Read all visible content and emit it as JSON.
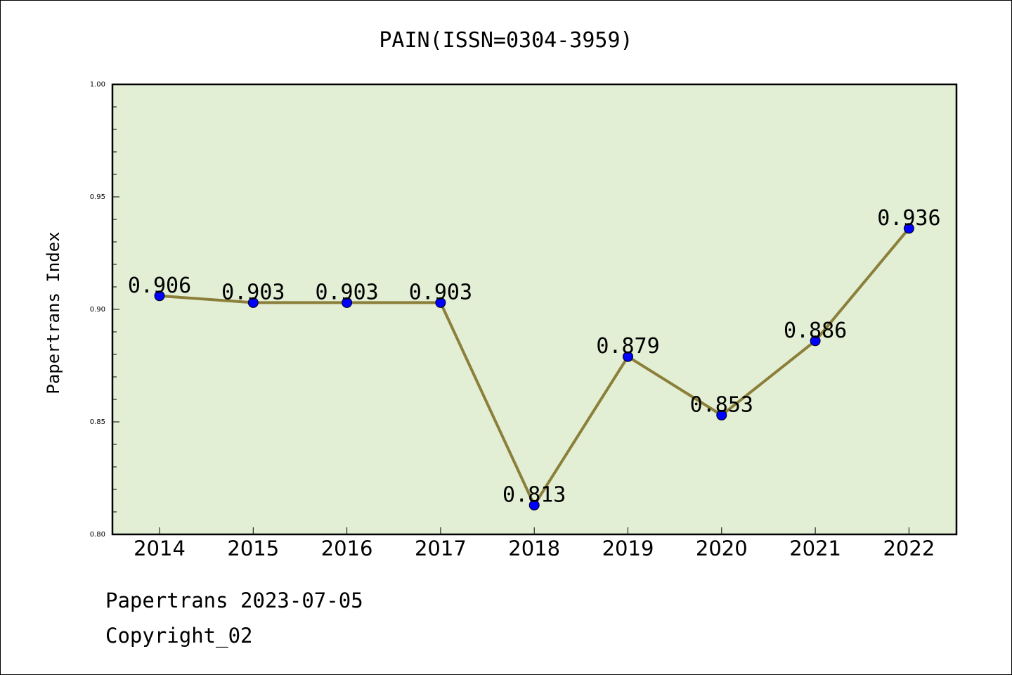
{
  "chart_data": {
    "type": "line",
    "title": "PAIN(ISSN=0304-3959)",
    "xlabel": "",
    "ylabel": "Papertrans Index",
    "categories": [
      "2014",
      "2015",
      "2016",
      "2017",
      "2018",
      "2019",
      "2020",
      "2021",
      "2022"
    ],
    "values": [
      0.906,
      0.903,
      0.903,
      0.903,
      0.813,
      0.879,
      0.853,
      0.886,
      0.936
    ],
    "data_labels": [
      "0.906",
      "0.903",
      "0.903",
      "0.903",
      "0.813",
      "0.879",
      "0.853",
      "0.886",
      "0.936"
    ],
    "ylim": [
      0.8,
      1.0
    ],
    "yticks": [
      "0.80",
      "0.85",
      "0.90",
      "0.95",
      "1.00"
    ],
    "grid": false,
    "legend": "none",
    "colors": {
      "plot_background": "#e2efd5",
      "line": "#8b7f3a",
      "marker": "#0000ff"
    }
  },
  "footer": {
    "line1": "Papertrans 2023-07-05",
    "line2": "Copyright_02"
  }
}
